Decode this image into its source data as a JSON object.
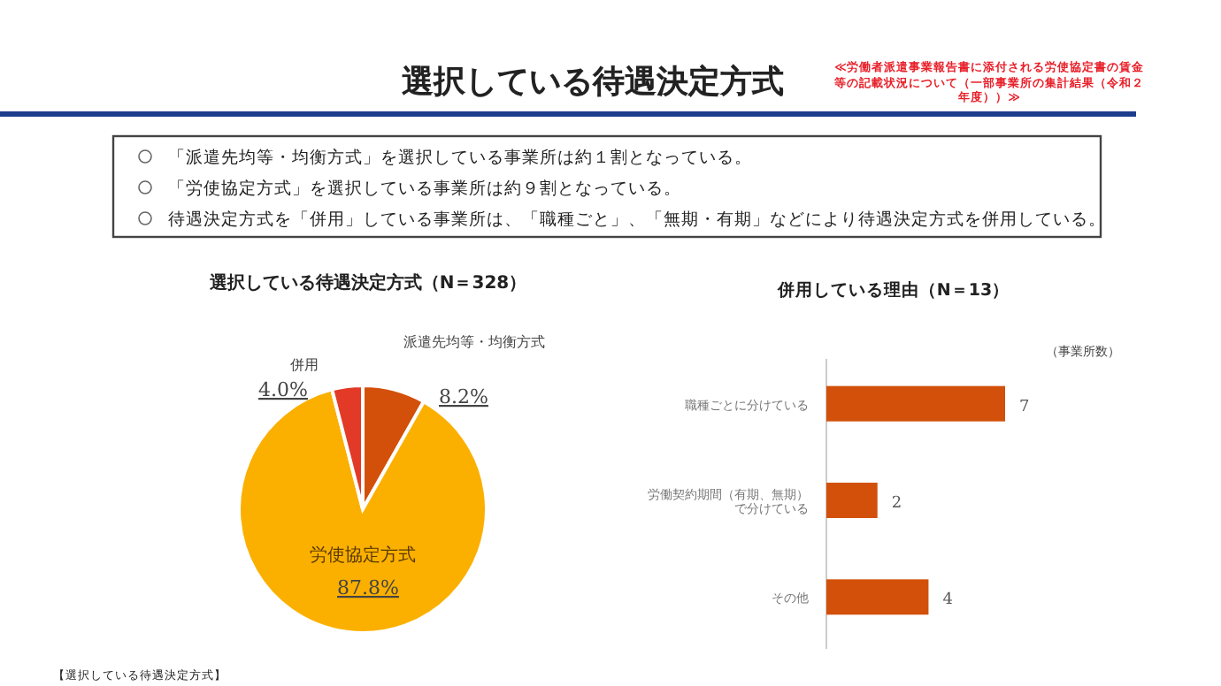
{
  "chart_data": [
    {
      "type": "other",
      "title": "選択している待遇決定方式",
      "subtitle": "≪労働者派遣事業報告書に添付される労使協定書の賃金等の記載状況について（一部事業所の集計結果（令和２年度））≫",
      "annotations": [
        "「派遣先均等・均衡方式」を選択している事業所は約１割となっている。",
        "「労使協定方式」を選択している事業所は約９割となっている。",
        "待遇決定方式を「併用」している事業所は、「職種ごと」、「無期・有期」などにより待遇決定方式を併用している。"
      ]
    },
    {
      "type": "pie",
      "title": "選択している待遇決定方式（N＝328）",
      "categories": [
        "派遣先均等・均衡方式",
        "労使協定方式",
        "併用"
      ],
      "values": [
        8.2,
        87.8,
        4.0
      ],
      "colors": [
        "#d2500a",
        "#fbb000",
        "#e23a26"
      ],
      "value_labels": [
        "8.2%",
        "87.8%",
        "4.0%"
      ],
      "annotations": [
        "【選択している待遇決定方式】"
      ]
    },
    {
      "type": "bar",
      "orientation": "horizontal",
      "title": "併用している理由（N＝13）",
      "categories": [
        "職種ごとに分けている",
        "労働契約期間（有期、無期）で分けている",
        "その他"
      ],
      "values": [
        7,
        2,
        4
      ],
      "color": "#d2500a",
      "data_labels": true,
      "annotations": [
        "（事業所数）"
      ]
    }
  ]
}
